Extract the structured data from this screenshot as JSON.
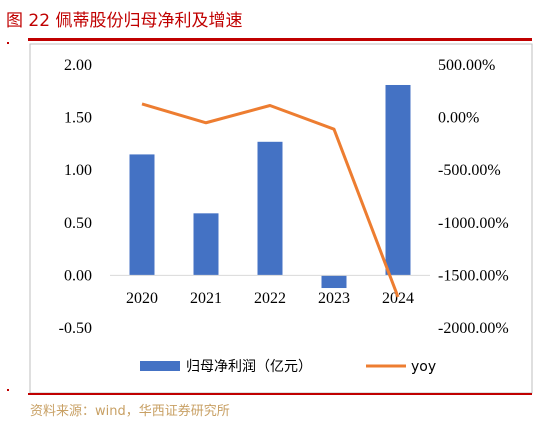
{
  "header": {
    "title": "图 22 佩蒂股份归母净利及增速"
  },
  "source": "资料来源：wind，华西证券研究所",
  "colors": {
    "bar": "#4472c4",
    "line": "#ed7d31",
    "accent": "#c00000",
    "source_text": "#c8a064"
  },
  "chart_data": {
    "type": "bar",
    "categories": [
      "2020",
      "2021",
      "2022",
      "2023",
      "2024"
    ],
    "series": [
      {
        "name": "归母净利润（亿元）",
        "type": "bar",
        "axis": "left",
        "values": [
          1.15,
          0.59,
          1.27,
          -0.12,
          1.81
        ]
      },
      {
        "name": "yoy",
        "type": "line",
        "axis": "right",
        "values": [
          130.0,
          -49.0,
          115.0,
          -110.0,
          -1705.0
        ]
      }
    ],
    "y_left": {
      "ylim": [
        -0.5,
        2.0
      ],
      "ticks": [
        "2.00",
        "1.50",
        "1.00",
        "0.50",
        "0.00",
        "-0.50"
      ]
    },
    "y_right": {
      "ylim": [
        -2000,
        500
      ],
      "ticks": [
        "500.00%",
        "0.00%",
        "-500.00%",
        "-1000.00%",
        "-1500.00%",
        "-2000.00%"
      ]
    },
    "grid": false,
    "legend": "bottom"
  }
}
